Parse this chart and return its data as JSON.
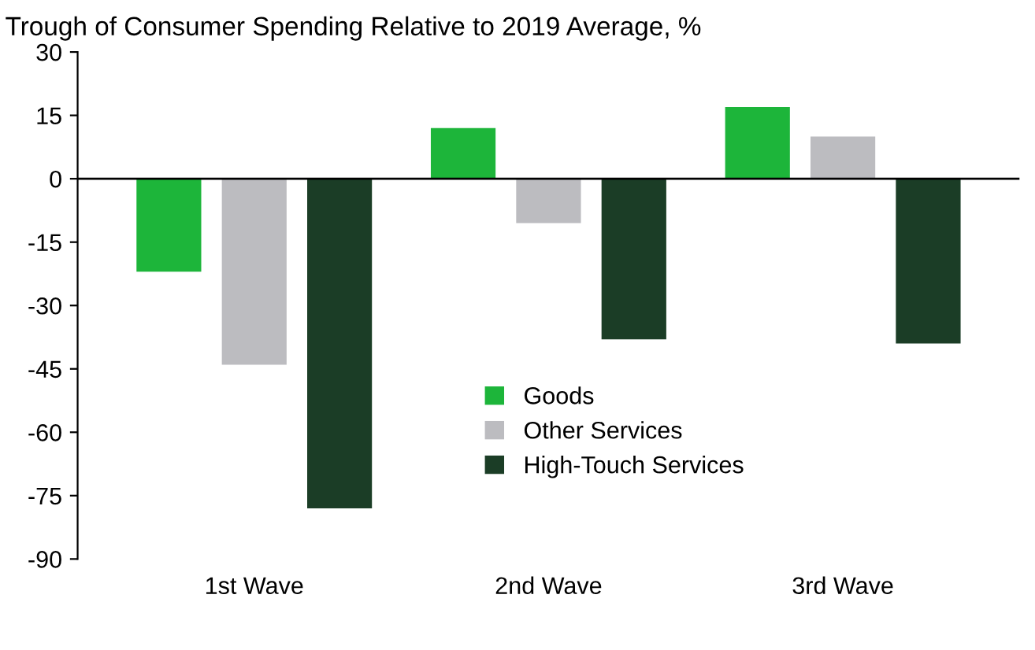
{
  "chart_data": {
    "type": "bar",
    "title": "Trough of Consumer Spending Relative to 2019 Average, %",
    "categories": [
      "1st Wave",
      "2nd Wave",
      "3rd Wave"
    ],
    "series": [
      {
        "name": "Goods",
        "color": "#1db53a",
        "values": [
          -22,
          12,
          17
        ]
      },
      {
        "name": "Other Services",
        "color": "#bcbcc0",
        "values": [
          -44,
          -10.5,
          10
        ]
      },
      {
        "name": "High-Touch Services",
        "color": "#1b3d26",
        "values": [
          -78,
          -38,
          -39
        ]
      }
    ],
    "ylim": [
      -90,
      30
    ],
    "yticks": [
      -90,
      -75,
      -60,
      -45,
      -30,
      -15,
      0,
      15,
      30
    ],
    "ref_lines": [
      {
        "axis": "y",
        "value": 0,
        "color": "#000000"
      }
    ],
    "grid": false,
    "legend": "center"
  }
}
